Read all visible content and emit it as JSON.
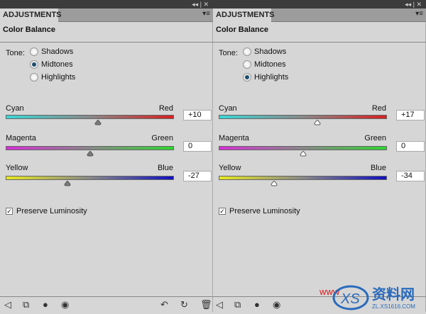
{
  "panels": [
    {
      "tab": "ADJUSTMENTS",
      "title": "Color Balance",
      "tone_label": "Tone:",
      "tones": [
        "Shadows",
        "Midtones",
        "Highlights"
      ],
      "selected_tone": "Midtones",
      "sliders": [
        {
          "left": "Cyan",
          "right": "Red",
          "value": "+10",
          "num": 10,
          "from": "#3ad6d6",
          "to": "#d62020"
        },
        {
          "left": "Magenta",
          "right": "Green",
          "value": "0",
          "num": 0,
          "from": "#d630d6",
          "to": "#30d630"
        },
        {
          "left": "Yellow",
          "right": "Blue",
          "value": "-27",
          "num": -27,
          "from": "#e8e820",
          "to": "#1010c0"
        }
      ],
      "thumb_color": "#7a7a7a",
      "preserve_luminosity": "Preserve Luminosity",
      "preserve_checked": true
    },
    {
      "tab": "ADJUSTMENTS",
      "title": "Color Balance",
      "tone_label": "Tone:",
      "tones": [
        "Shadows",
        "Midtones",
        "Highlights"
      ],
      "selected_tone": "Highlights",
      "sliders": [
        {
          "left": "Cyan",
          "right": "Red",
          "value": "+17",
          "num": 17,
          "from": "#3ad6d6",
          "to": "#d62020"
        },
        {
          "left": "Magenta",
          "right": "Green",
          "value": "0",
          "num": 0,
          "from": "#d630d6",
          "to": "#30d630"
        },
        {
          "left": "Yellow",
          "right": "Blue",
          "value": "-34",
          "num": -34,
          "from": "#e8e820",
          "to": "#1010c0"
        }
      ],
      "thumb_color": "#ffffff",
      "preserve_luminosity": "Preserve Luminosity",
      "preserve_checked": true
    }
  ],
  "watermark": {
    "text": "资料网",
    "url": "ZL.XS1616.COM",
    "prefix": "WWW"
  }
}
